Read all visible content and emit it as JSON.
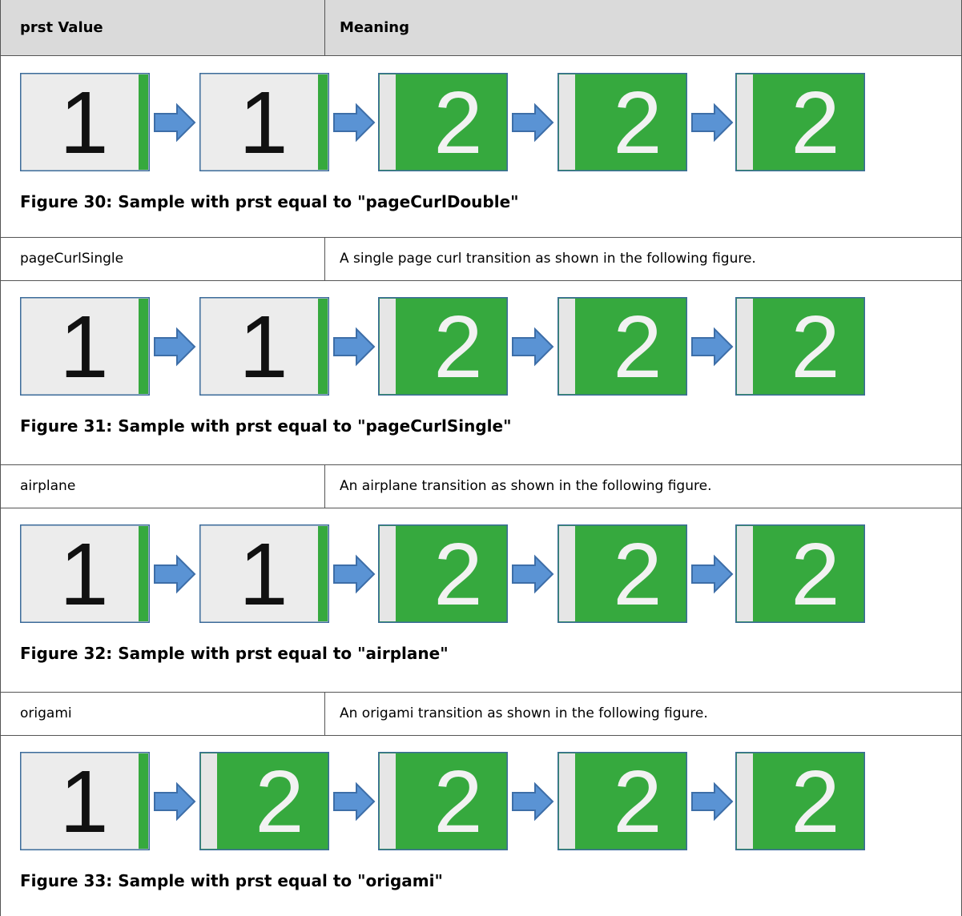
{
  "table": {
    "header": [
      "prst Value",
      "Meaning"
    ],
    "rows": [
      {
        "figure": {
          "frames": [
            "1",
            "1",
            "2",
            "2",
            "2"
          ],
          "caption": "Figure 30: Sample with prst equal to \"pageCurlDouble\""
        }
      },
      {
        "cells": [
          "pageCurlSingle",
          "A single page curl transition as shown in the following figure."
        ]
      },
      {
        "figure": {
          "frames": [
            "1",
            "1",
            "2",
            "2",
            "2"
          ],
          "caption": "Figure 31: Sample with prst equal to \"pageCurlSingle\""
        }
      },
      {
        "cells": [
          "airplane",
          "An airplane transition as shown in the following figure."
        ]
      },
      {
        "figure": {
          "frames": [
            "1",
            "1",
            "2",
            "2",
            "2"
          ],
          "caption": "Figure 32: Sample with prst equal to \"airplane\""
        }
      },
      {
        "cells": [
          "origami",
          "An origami transition as shown in the following figure."
        ]
      },
      {
        "figure": {
          "frames": [
            "1",
            "2",
            "2",
            "2",
            "2"
          ],
          "caption": "Figure 33: Sample with prst equal to \"origami\""
        }
      }
    ]
  }
}
